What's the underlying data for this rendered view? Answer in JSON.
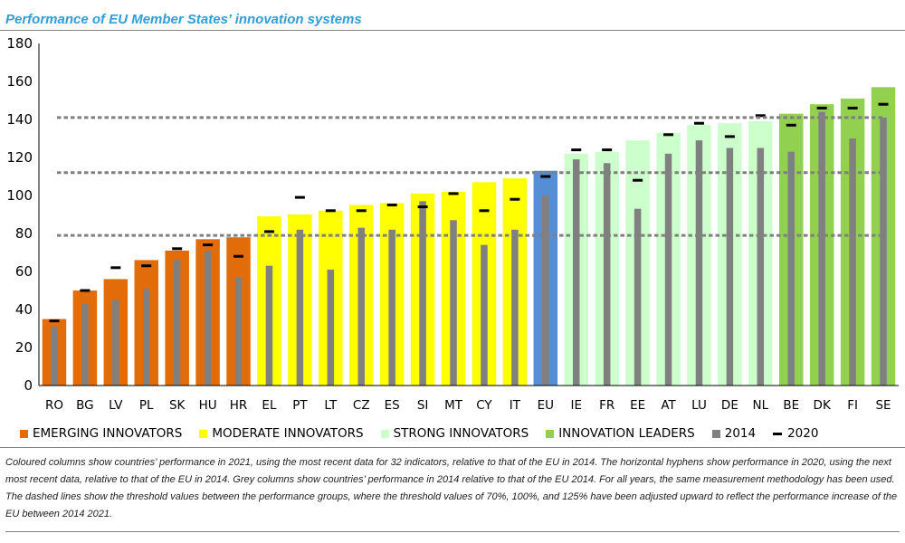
{
  "figure": {
    "title": "Performance of EU Member States’ innovation systems",
    "note": "Coloured columns show countries’ performance in 2021, using the most recent data for 32 indicators, relative to that of the EU in 2014. The horizontal hyphens show performance in 2020, using the next most recent data, relative to that of the EU in 2014. Grey columns show countries’ performance in 2014 relative to that of the EU 2014. For all years, the same measurement methodology has been used. The dashed lines show the threshold values between the performance groups, where the threshold values of 70%, 100%, and 125% have been adjusted upward to reflect the performance increase of the EU between 2014 2021."
  },
  "colors": {
    "emerging": "#e36c0a",
    "moderate": "#ffff00",
    "strong": "#ccffcc",
    "leaders": "#92d050",
    "eu": "#558ed5",
    "grey_2014": "#808080",
    "marker_2020": "#000000",
    "threshold": "#808080",
    "title": "#2e9fd8"
  },
  "legend": {
    "items": [
      {
        "label": "EMERGING INNOVATORS",
        "color": "#e36c0a",
        "kind": "box"
      },
      {
        "label": "MODERATE INNOVATORS",
        "color": "#ffff00",
        "kind": "box"
      },
      {
        "label": "STRONG INNOVATORS",
        "color": "#ccffcc",
        "kind": "box"
      },
      {
        "label": "INNOVATION LEADERS",
        "color": "#92d050",
        "kind": "box"
      },
      {
        "label": "2014",
        "color": "#808080",
        "kind": "box"
      },
      {
        "label": "2020",
        "color": "#000000",
        "kind": "dash"
      }
    ]
  },
  "chart_data": {
    "type": "bar",
    "title": "Performance of EU Member States’ innovation systems",
    "xlabel": "",
    "ylabel": "",
    "ylim": [
      0,
      180
    ],
    "yticks": [
      0,
      20,
      40,
      60,
      80,
      100,
      120,
      140,
      160,
      180
    ],
    "grid": false,
    "legend_position": "bottom",
    "categories": [
      "RO",
      "BG",
      "LV",
      "PL",
      "SK",
      "HU",
      "HR",
      "EL",
      "PT",
      "LT",
      "CZ",
      "ES",
      "SI",
      "MT",
      "CY",
      "IT",
      "EU",
      "IE",
      "FR",
      "EE",
      "AT",
      "LU",
      "DE",
      "NL",
      "BE",
      "DK",
      "FI",
      "SE"
    ],
    "groups": [
      "emerging",
      "emerging",
      "emerging",
      "emerging",
      "emerging",
      "emerging",
      "emerging",
      "moderate",
      "moderate",
      "moderate",
      "moderate",
      "moderate",
      "moderate",
      "moderate",
      "moderate",
      "moderate",
      "eu",
      "strong",
      "strong",
      "strong",
      "strong",
      "strong",
      "strong",
      "strong",
      "leaders",
      "leaders",
      "leaders",
      "leaders"
    ],
    "series": [
      {
        "name": "2021",
        "values": [
          35,
          50,
          56,
          66,
          71,
          77,
          78,
          89,
          90,
          92,
          95,
          96,
          101,
          102,
          107,
          109,
          113,
          122,
          123,
          129,
          133,
          137,
          138,
          139,
          143,
          148,
          151,
          157
        ]
      },
      {
        "name": "2014",
        "values": [
          31,
          43,
          45,
          51,
          66,
          71,
          57,
          63,
          82,
          61,
          83,
          82,
          97,
          87,
          74,
          82,
          100,
          119,
          117,
          93,
          122,
          129,
          125,
          125,
          123,
          144,
          130,
          141
        ]
      },
      {
        "name": "2020",
        "values": [
          34,
          50,
          62,
          63,
          72,
          74,
          68,
          81,
          99,
          92,
          92,
          95,
          94,
          101,
          92,
          98,
          110,
          124,
          124,
          108,
          132,
          138,
          131,
          142,
          137,
          146,
          146,
          148
        ]
      }
    ],
    "thresholds": [
      79,
      112,
      141
    ]
  }
}
